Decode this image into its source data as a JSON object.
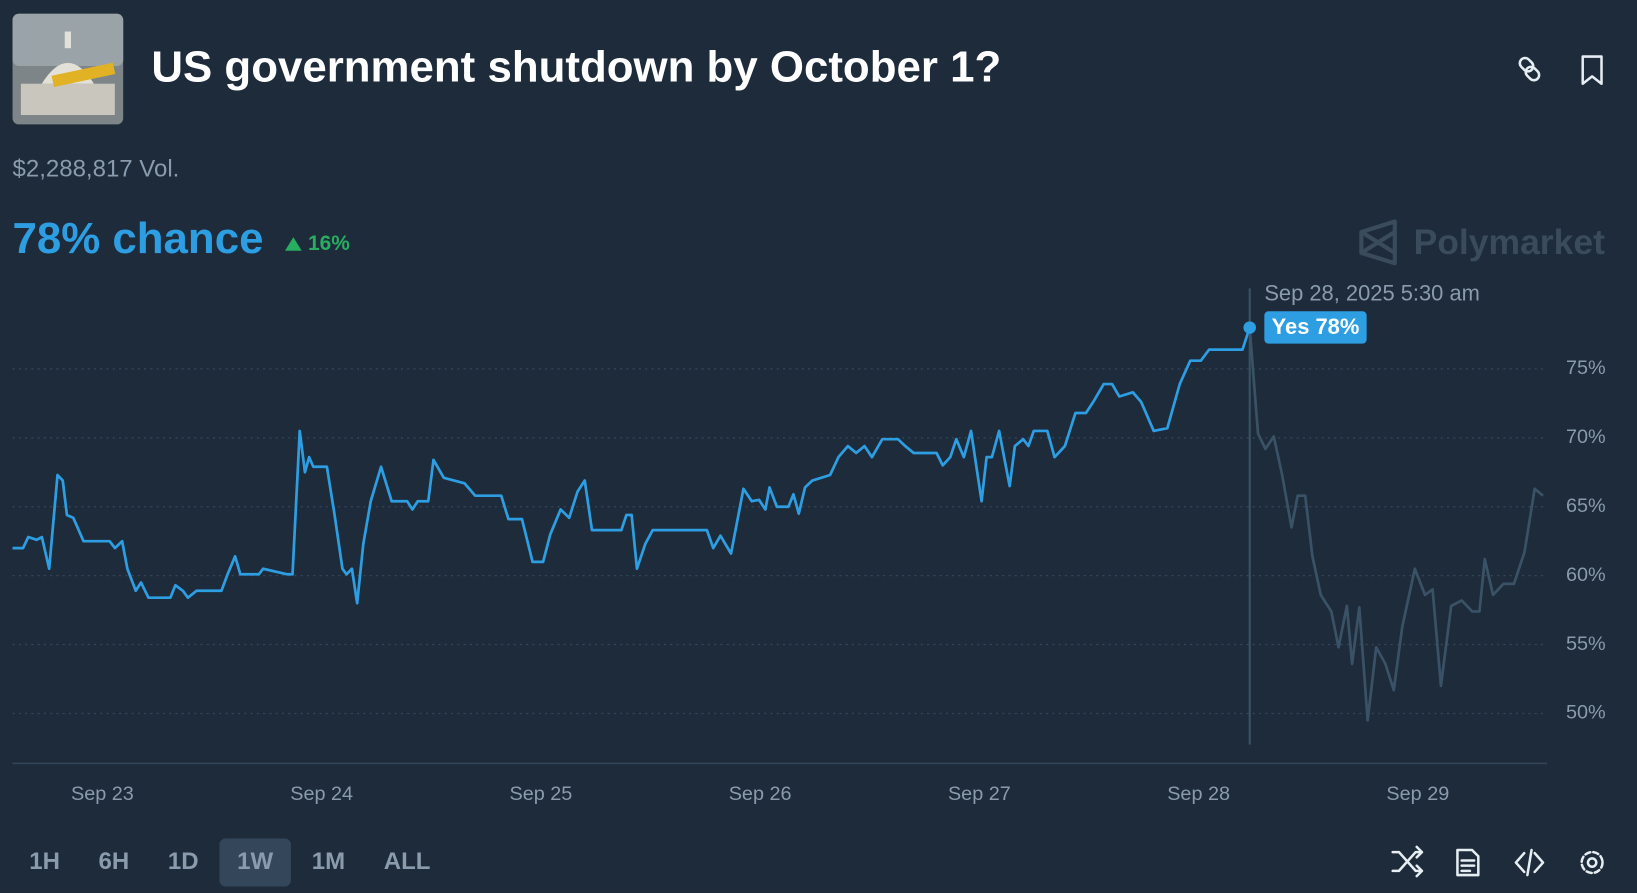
{
  "header": {
    "title": "US government shutdown by October 1?",
    "volume": "$2,288,817 Vol."
  },
  "summary": {
    "chance": "78% chance",
    "change": "16%"
  },
  "brand": "Polymarket",
  "tooltip": {
    "date": "Sep 28, 2025 5:30 am",
    "label": "Yes 78%"
  },
  "range_buttons": [
    "1H",
    "6H",
    "1D",
    "1W",
    "1M",
    "ALL"
  ],
  "active_range": "1W",
  "chart_data": {
    "type": "line",
    "xlim": [
      22.59,
      29.59
    ],
    "xticks": [
      {
        "value": 23,
        "label": "Sep 23"
      },
      {
        "value": 24,
        "label": "Sep 24"
      },
      {
        "value": 25,
        "label": "Sep 25"
      },
      {
        "value": 26,
        "label": "Sep 26"
      },
      {
        "value": 27,
        "label": "Sep 27"
      },
      {
        "value": 28,
        "label": "Sep 28"
      },
      {
        "value": 29,
        "label": "Sep 29"
      }
    ],
    "ylim": [
      46,
      81
    ],
    "yticks": [
      {
        "value": 50,
        "label": "50%"
      },
      {
        "value": 55,
        "label": "55%"
      },
      {
        "value": 60,
        "label": "60%"
      },
      {
        "value": 65,
        "label": "65%"
      },
      {
        "value": 70,
        "label": "70%"
      },
      {
        "value": 75,
        "label": "75%"
      }
    ],
    "grid": true,
    "series": [
      {
        "color": "#2e9ee3",
        "x": [
          22.59,
          22.638,
          22.662,
          22.7,
          22.724,
          22.757,
          22.795,
          22.819,
          22.838,
          22.867,
          22.914,
          23.033,
          23.057,
          23.09,
          23.114,
          23.152,
          23.176,
          23.21,
          23.31,
          23.333,
          23.367,
          23.39,
          23.429,
          23.543,
          23.571,
          23.605,
          23.629,
          23.714,
          23.733,
          23.843,
          23.867,
          23.9,
          23.924,
          23.943,
          23.962,
          24.024,
          24.057,
          24.095,
          24.114,
          24.138,
          24.162,
          24.19,
          24.224,
          24.271,
          24.319,
          24.39,
          24.414,
          24.438,
          24.486,
          24.51,
          24.557,
          24.652,
          24.7,
          24.748,
          24.819,
          24.852,
          24.914,
          24.962,
          25.01,
          25.043,
          25.09,
          25.129,
          25.167,
          25.2,
          25.233,
          25.367,
          25.39,
          25.414,
          25.438,
          25.476,
          25.51,
          25.757,
          25.786,
          25.819,
          25.867,
          25.924,
          25.962,
          25.995,
          26.024,
          26.043,
          26.076,
          26.129,
          26.152,
          26.176,
          26.205,
          26.238,
          26.319,
          26.357,
          26.4,
          26.438,
          26.476,
          26.51,
          26.557,
          26.629,
          26.662,
          26.7,
          26.805,
          26.833,
          26.867,
          26.895,
          26.929,
          26.962,
          27.01,
          27.033,
          27.057,
          27.09,
          27.138,
          27.162,
          27.2,
          27.224,
          27.248,
          27.31,
          27.343,
          27.39,
          27.438,
          27.486,
          27.519,
          27.567,
          27.605,
          27.638,
          27.7,
          27.738,
          27.795,
          27.857,
          27.914,
          27.962,
          28.01,
          28.048,
          28.2,
          28.233
        ],
        "values": [
          62.0,
          62.0,
          62.8,
          62.6,
          62.8,
          60.5,
          67.3,
          66.9,
          64.4,
          64.2,
          62.5,
          62.5,
          62.0,
          62.5,
          60.5,
          58.9,
          59.5,
          58.4,
          58.4,
          59.3,
          58.9,
          58.4,
          58.9,
          58.9,
          60.1,
          61.4,
          60.1,
          60.1,
          60.5,
          60.1,
          60.1,
          70.5,
          67.5,
          68.6,
          67.9,
          67.9,
          64.6,
          60.5,
          60.1,
          60.5,
          58.0,
          62.3,
          65.4,
          67.9,
          65.4,
          65.4,
          64.8,
          65.4,
          65.4,
          68.4,
          67.1,
          66.7,
          65.8,
          65.8,
          65.8,
          64.1,
          64.1,
          61.0,
          61.0,
          63.0,
          64.8,
          64.2,
          66.1,
          66.9,
          63.3,
          63.3,
          64.4,
          64.4,
          60.5,
          62.3,
          63.3,
          63.3,
          62.0,
          62.9,
          61.6,
          66.3,
          65.4,
          65.5,
          64.8,
          66.4,
          65.0,
          65.0,
          65.9,
          64.5,
          66.4,
          66.9,
          67.3,
          68.6,
          69.4,
          68.9,
          69.4,
          68.6,
          69.9,
          69.9,
          69.4,
          68.9,
          68.9,
          68.0,
          68.6,
          69.9,
          68.6,
          70.5,
          65.4,
          68.6,
          68.6,
          70.5,
          66.5,
          69.4,
          69.9,
          69.4,
          70.5,
          70.5,
          68.6,
          69.4,
          71.8,
          71.8,
          72.6,
          73.9,
          73.9,
          73.0,
          73.3,
          72.6,
          70.5,
          70.7,
          73.9,
          75.6,
          75.6,
          76.4,
          76.4,
          78
        ]
      },
      {
        "color": "#3a5266",
        "x": [
          28.233,
          28.271,
          28.305,
          28.343,
          28.381,
          28.424,
          28.452,
          28.486,
          28.519,
          28.557,
          28.605,
          28.638,
          28.676,
          28.7,
          28.733,
          28.771,
          28.81,
          28.852,
          28.89,
          28.929,
          28.986,
          29.033,
          29.067,
          29.105,
          29.152,
          29.2,
          29.248,
          29.281,
          29.305,
          29.343,
          29.39,
          29.438,
          29.486,
          29.533,
          29.571
        ],
        "values": [
          78,
          70.3,
          69.2,
          70.1,
          67.3,
          63.5,
          65.8,
          65.8,
          61.4,
          58.6,
          57.4,
          54.8,
          57.8,
          53.6,
          57.7,
          49.5,
          54.8,
          53.6,
          51.7,
          56.3,
          60.5,
          58.6,
          59.0,
          52.0,
          57.8,
          58.2,
          57.4,
          57.4,
          61.2,
          58.6,
          59.4,
          59.4,
          61.7,
          66.3,
          65.8
        ]
      }
    ]
  }
}
